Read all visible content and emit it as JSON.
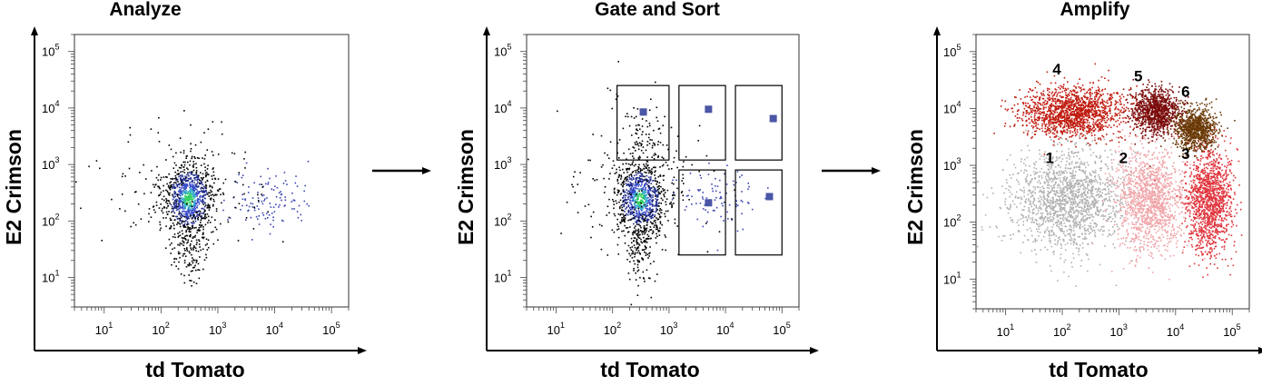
{
  "figure": {
    "transition_arrows": 2
  },
  "chart_data": [
    {
      "type": "scatter",
      "title": "Analyze",
      "xlabel": "td Tomato",
      "ylabel": "E2 Crimson",
      "x_scale": "log",
      "y_scale": "log",
      "xlim": [
        3,
        200000
      ],
      "ylim": [
        3,
        200000
      ],
      "x_ticks": [
        {
          "base": "10",
          "exp": "1"
        },
        {
          "base": "10",
          "exp": "2"
        },
        {
          "base": "10",
          "exp": "3"
        },
        {
          "base": "10",
          "exp": "4"
        },
        {
          "base": "10",
          "exp": "5"
        }
      ],
      "y_ticks": [
        {
          "base": "10",
          "exp": "1"
        },
        {
          "base": "10",
          "exp": "2"
        },
        {
          "base": "10",
          "exp": "3"
        },
        {
          "base": "10",
          "exp": "4"
        },
        {
          "base": "10",
          "exp": "5"
        }
      ],
      "populations": [
        {
          "center": [
            300,
            250
          ],
          "spread_log": [
            0.22,
            0.32
          ],
          "count": 900,
          "color": "#1e2a6e",
          "density_coloring": true
        },
        {
          "center": [
            300,
            35
          ],
          "spread_log": [
            0.14,
            0.3
          ],
          "count": 140,
          "color": "#000000"
        },
        {
          "center": [
            8000,
            250
          ],
          "spread_log": [
            0.35,
            0.28
          ],
          "count": 120,
          "color": "#3a46b0"
        },
        {
          "center": [
            300,
            400
          ],
          "spread_log": [
            0.7,
            0.55
          ],
          "count": 160,
          "color": "#000000"
        }
      ],
      "density_colors": [
        "#000000",
        "#1f2b8a",
        "#3448c8",
        "#2fa8c8",
        "#30d060"
      ],
      "gates": [],
      "sort_markers": [],
      "population_labels": []
    },
    {
      "type": "scatter",
      "title": "Gate and Sort",
      "xlabel": "td Tomato",
      "ylabel": "E2 Crimson",
      "x_scale": "log",
      "y_scale": "log",
      "xlim": [
        3,
        200000
      ],
      "ylim": [
        3,
        200000
      ],
      "x_ticks": [
        {
          "base": "10",
          "exp": "1"
        },
        {
          "base": "10",
          "exp": "2"
        },
        {
          "base": "10",
          "exp": "3"
        },
        {
          "base": "10",
          "exp": "4"
        },
        {
          "base": "10",
          "exp": "5"
        }
      ],
      "y_ticks": [
        {
          "base": "10",
          "exp": "1"
        },
        {
          "base": "10",
          "exp": "2"
        },
        {
          "base": "10",
          "exp": "3"
        },
        {
          "base": "10",
          "exp": "4"
        },
        {
          "base": "10",
          "exp": "5"
        }
      ],
      "populations": [
        {
          "center": [
            300,
            250
          ],
          "spread_log": [
            0.22,
            0.32
          ],
          "count": 900,
          "color": "#1e2a6e",
          "density_coloring": true
        },
        {
          "center": [
            300,
            35
          ],
          "spread_log": [
            0.14,
            0.3
          ],
          "count": 140,
          "color": "#000000"
        },
        {
          "center": [
            8000,
            250
          ],
          "spread_log": [
            0.35,
            0.28
          ],
          "count": 90,
          "color": "#3a46b0"
        },
        {
          "center": [
            300,
            4000
          ],
          "spread_log": [
            0.25,
            0.35
          ],
          "count": 80,
          "color": "#000000"
        },
        {
          "center": [
            300,
            400
          ],
          "spread_log": [
            0.7,
            0.55
          ],
          "count": 160,
          "color": "#000000"
        }
      ],
      "density_colors": [
        "#000000",
        "#1f2b8a",
        "#3448c8",
        "#2fa8c8",
        "#30d060"
      ],
      "gates": [
        {
          "x": [
            120,
            1000
          ],
          "y": [
            1200,
            25000
          ]
        },
        {
          "x": [
            1500,
            10000
          ],
          "y": [
            1200,
            25000
          ]
        },
        {
          "x": [
            15000,
            100000
          ],
          "y": [
            1200,
            25000
          ]
        },
        {
          "x": [
            1500,
            10000
          ],
          "y": [
            25,
            800
          ]
        },
        {
          "x": [
            15000,
            100000
          ],
          "y": [
            25,
            800
          ]
        }
      ],
      "sort_markers": [
        {
          "x": 350,
          "y": 8500
        },
        {
          "x": 5000,
          "y": 9500
        },
        {
          "x": 70000,
          "y": 6500
        },
        {
          "x": 5000,
          "y": 210
        },
        {
          "x": 60000,
          "y": 270
        }
      ],
      "sort_marker_color": "#4a56a6",
      "population_labels": []
    },
    {
      "type": "scatter",
      "title": "Amplify",
      "xlabel": "td Tomato",
      "ylabel": "E2 Crimson",
      "x_scale": "log",
      "y_scale": "log",
      "xlim": [
        3,
        200000
      ],
      "ylim": [
        3,
        200000
      ],
      "x_ticks": [
        {
          "base": "10",
          "exp": "1"
        },
        {
          "base": "10",
          "exp": "2"
        },
        {
          "base": "10",
          "exp": "3"
        },
        {
          "base": "10",
          "exp": "4"
        },
        {
          "base": "10",
          "exp": "5"
        }
      ],
      "y_ticks": [
        {
          "base": "10",
          "exp": "1"
        },
        {
          "base": "10",
          "exp": "2"
        },
        {
          "base": "10",
          "exp": "3"
        },
        {
          "base": "10",
          "exp": "4"
        },
        {
          "base": "10",
          "exp": "5"
        }
      ],
      "populations": [
        {
          "label": "1",
          "center": [
            120,
            250
          ],
          "spread_log": [
            0.5,
            0.45
          ],
          "count": 1600,
          "color": "#b0b0b0"
        },
        {
          "label": "2",
          "center": [
            3500,
            250
          ],
          "spread_log": [
            0.3,
            0.45
          ],
          "count": 1300,
          "color": "#f0a4a8"
        },
        {
          "label": "3",
          "center": [
            38000,
            250
          ],
          "spread_log": [
            0.2,
            0.45
          ],
          "count": 1300,
          "color": "#e0343c"
        },
        {
          "label": "4",
          "center": [
            150,
            9000
          ],
          "spread_log": [
            0.45,
            0.22
          ],
          "count": 1500,
          "color": "#c01c10"
        },
        {
          "label": "5",
          "center": [
            4500,
            9000
          ],
          "spread_log": [
            0.2,
            0.2
          ],
          "count": 1000,
          "color": "#7a0a0a"
        },
        {
          "label": "6",
          "center": [
            22000,
            4500
          ],
          "spread_log": [
            0.18,
            0.18
          ],
          "count": 900,
          "color": "#6a3a08"
        }
      ],
      "gates": [],
      "sort_markers": [],
      "population_labels": [
        {
          "text": "1",
          "x": 60,
          "y": 1100
        },
        {
          "text": "2",
          "x": 1200,
          "y": 1100
        },
        {
          "text": "3",
          "x": 15000,
          "y": 1300
        },
        {
          "text": "4",
          "x": 80,
          "y": 40000
        },
        {
          "text": "5",
          "x": 2200,
          "y": 30000
        },
        {
          "text": "6",
          "x": 15000,
          "y": 16000
        }
      ]
    }
  ]
}
